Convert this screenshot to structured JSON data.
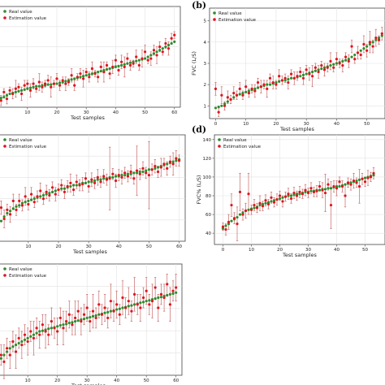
{
  "figure": {
    "colors": {
      "real": "#2e8b2e",
      "estimation": "#e0141e",
      "errorbar": "#c96a6a",
      "grid": "#e2e2e2",
      "axis": "#444444"
    },
    "legend": {
      "real_label": "Real value",
      "estimation_label": "Estimation value"
    }
  },
  "chart_data": [
    {
      "panel": "a",
      "panel_label": "",
      "type": "scatter",
      "xlabel": "Test samples",
      "ylabel": "",
      "xticks": [
        10,
        20,
        30,
        40,
        50,
        60
      ],
      "yticks": [],
      "xlim": [
        -1,
        62
      ],
      "ylim": [
        0.5,
        6.5
      ],
      "legend_position": "top-left",
      "grid": true,
      "real": [
        1.0,
        1.05,
        1.1,
        1.2,
        1.3,
        1.35,
        1.4,
        1.45,
        1.5,
        1.55,
        1.6,
        1.65,
        1.7,
        1.75,
        1.75,
        1.8,
        1.8,
        1.85,
        1.85,
        1.9,
        1.9,
        1.95,
        2.0,
        2.05,
        2.1,
        2.15,
        2.2,
        2.25,
        2.3,
        2.35,
        2.4,
        2.45,
        2.5,
        2.55,
        2.6,
        2.65,
        2.7,
        2.75,
        2.8,
        2.85,
        2.9,
        2.95,
        3.0,
        3.05,
        3.1,
        3.15,
        3.2,
        3.25,
        3.3,
        3.35,
        3.4,
        3.5,
        3.6,
        3.7,
        3.8,
        3.9,
        4.0,
        4.1,
        4.2,
        4.3,
        4.4
      ],
      "estimation": [
        1.2,
        0.9,
        1.4,
        1.0,
        1.5,
        1.3,
        1.6,
        1.7,
        1.3,
        1.8,
        1.9,
        1.5,
        1.9,
        1.6,
        2.0,
        1.7,
        1.9,
        2.1,
        1.7,
        1.9,
        2.2,
        1.8,
        2.1,
        1.9,
        2.0,
        2.4,
        1.8,
        2.3,
        2.5,
        2.2,
        2.6,
        2.3,
        2.8,
        2.5,
        2.3,
        2.9,
        2.6,
        3.0,
        2.5,
        2.9,
        3.3,
        2.7,
        3.2,
        2.9,
        3.4,
        3.0,
        3.1,
        3.5,
        3.0,
        3.4,
        3.8,
        3.3,
        3.4,
        3.9,
        3.6,
        4.1,
        3.8,
        4.3,
        4.0,
        4.6,
        4.8
      ],
      "estimation_error": [
        0.2,
        0.3,
        0.2,
        0.3,
        0.2,
        0.3,
        0.5,
        0.2,
        0.4,
        0.3,
        0.2,
        0.4,
        0.3,
        0.2,
        0.5,
        0.3,
        0.2,
        0.3,
        0.6,
        0.2,
        0.3,
        0.3,
        0.2,
        0.4,
        0.2,
        0.4,
        0.3,
        0.2,
        0.3,
        0.5,
        0.2,
        0.3,
        0.4,
        0.2,
        0.3,
        0.3,
        0.6,
        0.2,
        0.3,
        0.4,
        0.3,
        0.3,
        0.4,
        0.6,
        0.3,
        0.3,
        0.2,
        0.4,
        0.3,
        0.5,
        0.4,
        0.2,
        0.4,
        0.3,
        0.5,
        0.3,
        0.2,
        0.3,
        0.4,
        0.3,
        0.2
      ]
    },
    {
      "panel": "b",
      "panel_label": "(b)",
      "type": "scatter",
      "xlabel": "Test samples",
      "ylabel": "FVC (L/S)",
      "xticks": [
        0,
        10,
        20,
        30,
        40,
        50
      ],
      "yticks": [
        1,
        2,
        3,
        4,
        5
      ],
      "xlim": [
        -2,
        56
      ],
      "ylim": [
        0.4,
        5.6
      ],
      "legend_position": "top-left",
      "grid": true,
      "real": [
        0.9,
        0.95,
        1.0,
        1.1,
        1.2,
        1.3,
        1.4,
        1.5,
        1.55,
        1.6,
        1.65,
        1.7,
        1.75,
        1.8,
        1.85,
        1.9,
        1.95,
        2.0,
        2.0,
        2.05,
        2.1,
        2.15,
        2.2,
        2.2,
        2.25,
        2.3,
        2.3,
        2.35,
        2.4,
        2.45,
        2.5,
        2.55,
        2.6,
        2.65,
        2.7,
        2.75,
        2.8,
        2.85,
        2.9,
        2.95,
        3.0,
        3.05,
        3.1,
        3.15,
        3.2,
        3.3,
        3.4,
        3.5,
        3.6,
        3.7,
        3.8,
        3.9,
        4.0,
        4.1,
        4.2,
        4.3
      ],
      "estimation": [
        1.8,
        0.7,
        1.5,
        1.0,
        1.4,
        1.3,
        1.6,
        1.5,
        1.8,
        1.5,
        1.9,
        1.6,
        1.8,
        1.7,
        2.1,
        1.9,
        2.0,
        1.8,
        2.3,
        2.1,
        2.0,
        2.4,
        2.2,
        2.3,
        2.1,
        2.5,
        2.3,
        2.4,
        2.6,
        2.3,
        2.7,
        2.5,
        2.4,
        2.8,
        2.6,
        2.9,
        2.7,
        2.8,
        3.1,
        2.8,
        3.2,
        3.0,
        2.9,
        3.3,
        3.1,
        3.8,
        3.2,
        3.5,
        3.4,
        3.9,
        3.6,
        4.0,
        3.8,
        4.2,
        4.1,
        4.4
      ],
      "estimation_error": [
        0.3,
        0.2,
        0.4,
        0.2,
        0.3,
        0.2,
        0.3,
        0.2,
        0.3,
        0.2,
        0.3,
        0.2,
        0.2,
        0.3,
        0.2,
        0.3,
        0.2,
        0.4,
        0.2,
        0.3,
        0.2,
        0.3,
        0.2,
        0.2,
        0.3,
        0.2,
        0.3,
        0.2,
        0.2,
        0.3,
        0.2,
        0.3,
        0.5,
        0.2,
        0.3,
        0.2,
        0.3,
        0.2,
        0.4,
        0.2,
        0.3,
        0.2,
        0.3,
        0.2,
        0.3,
        0.3,
        0.2,
        0.3,
        0.2,
        0.4,
        0.3,
        0.5,
        0.3,
        0.4,
        0.2,
        0.3
      ]
    },
    {
      "panel": "c",
      "panel_label": "",
      "type": "scatter",
      "xlabel": "Test samples",
      "ylabel": "",
      "xticks": [
        10,
        20,
        30,
        40,
        50,
        60
      ],
      "yticks": [],
      "xlim": [
        -1,
        62
      ],
      "ylim": [
        30,
        125
      ],
      "legend_position": "top-left",
      "grid": true,
      "real": [
        42,
        48,
        52,
        55,
        57,
        59,
        61,
        62,
        64,
        65,
        66,
        67,
        68,
        69,
        70,
        71,
        72,
        73,
        74,
        75,
        76,
        77,
        77,
        78,
        79,
        80,
        80,
        81,
        82,
        82,
        83,
        83,
        84,
        85,
        85,
        86,
        86,
        87,
        87,
        88,
        88,
        89,
        89,
        90,
        90,
        91,
        91,
        92,
        92,
        93,
        94,
        94,
        95,
        96,
        97,
        98,
        99,
        100,
        101,
        102,
        103
      ],
      "estimation": [
        38,
        60,
        50,
        58,
        54,
        66,
        58,
        66,
        62,
        70,
        63,
        72,
        65,
        70,
        75,
        68,
        74,
        71,
        78,
        72,
        76,
        80,
        74,
        79,
        82,
        76,
        83,
        80,
        81,
        86,
        79,
        85,
        82,
        87,
        83,
        88,
        85,
        86,
        90,
        84,
        89,
        87,
        91,
        88,
        92,
        86,
        93,
        90,
        95,
        91,
        89,
        94,
        97,
        92,
        96,
        99,
        95,
        101,
        99,
        104,
        102
      ],
      "estimation_error": [
        10,
        6,
        8,
        5,
        7,
        6,
        5,
        6,
        5,
        8,
        5,
        6,
        5,
        5,
        7,
        5,
        6,
        5,
        5,
        6,
        5,
        5,
        6,
        5,
        8,
        5,
        6,
        5,
        6,
        5,
        5,
        6,
        5,
        7,
        5,
        6,
        5,
        28,
        5,
        6,
        5,
        6,
        5,
        5,
        6,
        5,
        22,
        5,
        6,
        5,
        30,
        5,
        6,
        5,
        8,
        5,
        6,
        5,
        10,
        7,
        5
      ]
    },
    {
      "panel": "d",
      "panel_label": "(d)",
      "type": "scatter",
      "xlabel": "Test samples",
      "ylabel": "FVC% (L/S)",
      "xticks": [
        0,
        10,
        20,
        30,
        40,
        50
      ],
      "yticks": [
        40,
        60,
        80,
        100,
        120,
        140
      ],
      "xlim": [
        -3,
        57
      ],
      "ylim": [
        28,
        145
      ],
      "legend_position": "top-left",
      "grid": true,
      "real": [
        45,
        48,
        50,
        53,
        55,
        57,
        60,
        62,
        64,
        65,
        66,
        67,
        68,
        70,
        71,
        72,
        73,
        74,
        75,
        76,
        77,
        78,
        79,
        80,
        80,
        81,
        82,
        82,
        83,
        84,
        84,
        85,
        85,
        86,
        86,
        87,
        87,
        88,
        88,
        89,
        90,
        90,
        91,
        92,
        93,
        94,
        95,
        96,
        97,
        98,
        99,
        100,
        101,
        102
      ],
      "estimation": [
        47,
        44,
        52,
        70,
        56,
        50,
        84,
        60,
        64,
        82,
        65,
        70,
        67,
        72,
        69,
        75,
        71,
        78,
        73,
        76,
        80,
        74,
        79,
        82,
        77,
        83,
        80,
        84,
        82,
        86,
        83,
        88,
        84,
        85,
        90,
        86,
        83,
        92,
        70,
        90,
        88,
        95,
        90,
        80,
        94,
        92,
        96,
        94,
        90,
        98,
        95,
        99,
        100,
        104
      ],
      "estimation_error": [
        4,
        6,
        8,
        12,
        6,
        18,
        20,
        6,
        8,
        22,
        5,
        6,
        5,
        8,
        5,
        6,
        5,
        6,
        5,
        6,
        5,
        6,
        5,
        6,
        5,
        6,
        5,
        6,
        5,
        6,
        5,
        6,
        5,
        6,
        5,
        8,
        20,
        6,
        25,
        6,
        8,
        5,
        6,
        12,
        5,
        6,
        8,
        5,
        18,
        6,
        5,
        8,
        5,
        6
      ]
    },
    {
      "panel": "e",
      "panel_label": "",
      "type": "scatter",
      "xlabel": "Test samples",
      "ylabel": "",
      "xticks": [
        10,
        20,
        30,
        40,
        50,
        60
      ],
      "yticks": [],
      "xlim": [
        -1,
        62
      ],
      "ylim": [
        0.3,
        3.6
      ],
      "legend_position": "top-left",
      "grid": true,
      "real": [
        0.7,
        0.8,
        0.9,
        1.0,
        1.1,
        1.15,
        1.2,
        1.25,
        1.3,
        1.35,
        1.4,
        1.45,
        1.5,
        1.55,
        1.6,
        1.62,
        1.65,
        1.68,
        1.7,
        1.72,
        1.75,
        1.78,
        1.8,
        1.82,
        1.85,
        1.87,
        1.9,
        1.92,
        1.95,
        1.97,
        2.0,
        2.02,
        2.05,
        2.07,
        2.1,
        2.12,
        2.15,
        2.17,
        2.2,
        2.22,
        2.25,
        2.27,
        2.3,
        2.32,
        2.35,
        2.37,
        2.4,
        2.42,
        2.45,
        2.47,
        2.5,
        2.52,
        2.55,
        2.57,
        2.6,
        2.62,
        2.65,
        2.67,
        2.7,
        2.72,
        2.75
      ],
      "estimation": [
        0.5,
        0.9,
        0.7,
        1.1,
        0.9,
        1.3,
        1.0,
        1.4,
        1.2,
        1.5,
        1.3,
        1.6,
        1.4,
        1.7,
        1.5,
        1.8,
        1.6,
        1.5,
        1.9,
        1.7,
        1.6,
        2.0,
        1.7,
        1.9,
        2.1,
        1.8,
        2.0,
        2.2,
        1.9,
        2.1,
        2.3,
        1.9,
        2.2,
        2.0,
        2.4,
        2.1,
        2.3,
        2.0,
        2.5,
        2.2,
        2.4,
        2.1,
        2.6,
        2.3,
        2.5,
        2.2,
        2.7,
        2.4,
        2.3,
        2.6,
        2.8,
        2.4,
        2.5,
        2.9,
        2.3,
        2.7,
        2.6,
        3.0,
        2.4,
        2.8,
        2.9
      ],
      "estimation_error": [
        0.4,
        0.3,
        0.5,
        0.3,
        0.4,
        0.3,
        0.5,
        0.3,
        0.4,
        0.3,
        0.4,
        0.3,
        0.5,
        0.3,
        0.4,
        0.3,
        0.5,
        0.3,
        0.4,
        0.3,
        0.4,
        0.3,
        0.5,
        0.3,
        0.4,
        0.3,
        0.5,
        0.3,
        0.4,
        0.3,
        0.4,
        0.3,
        0.5,
        0.3,
        0.4,
        0.3,
        0.4,
        0.3,
        0.5,
        0.3,
        0.4,
        0.3,
        0.5,
        0.3,
        0.4,
        0.3,
        0.5,
        0.3,
        0.4,
        0.3,
        0.4,
        0.3,
        0.5,
        0.3,
        0.4,
        0.3,
        0.4,
        0.3,
        0.5,
        0.3,
        0.4
      ]
    }
  ]
}
